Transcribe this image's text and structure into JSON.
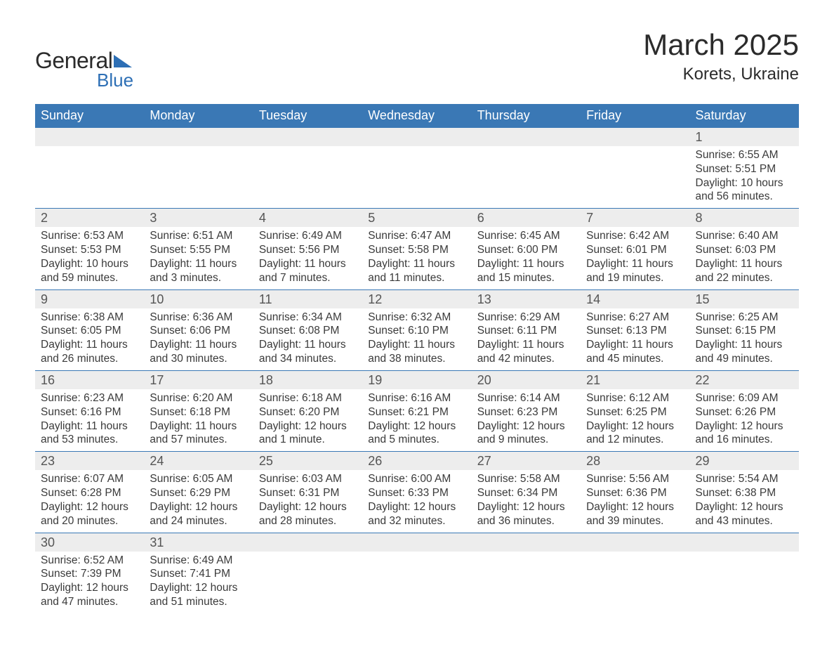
{
  "logo": {
    "text1": "General",
    "text2": "Blue"
  },
  "title": "March 2025",
  "location": "Korets, Ukraine",
  "colors": {
    "header_bg": "#3a78b5",
    "header_text": "#ffffff",
    "daynum_bg": "#ededed",
    "rule": "#3a78b5",
    "body_text": "#3a3a3a",
    "logo_accent": "#2d6fb5"
  },
  "day_headers": [
    "Sunday",
    "Monday",
    "Tuesday",
    "Wednesday",
    "Thursday",
    "Friday",
    "Saturday"
  ],
  "first_weekday_index": 6,
  "days": [
    {
      "n": 1,
      "sunrise": "6:55 AM",
      "sunset": "5:51 PM",
      "daylight": "10 hours and 56 minutes."
    },
    {
      "n": 2,
      "sunrise": "6:53 AM",
      "sunset": "5:53 PM",
      "daylight": "10 hours and 59 minutes."
    },
    {
      "n": 3,
      "sunrise": "6:51 AM",
      "sunset": "5:55 PM",
      "daylight": "11 hours and 3 minutes."
    },
    {
      "n": 4,
      "sunrise": "6:49 AM",
      "sunset": "5:56 PM",
      "daylight": "11 hours and 7 minutes."
    },
    {
      "n": 5,
      "sunrise": "6:47 AM",
      "sunset": "5:58 PM",
      "daylight": "11 hours and 11 minutes."
    },
    {
      "n": 6,
      "sunrise": "6:45 AM",
      "sunset": "6:00 PM",
      "daylight": "11 hours and 15 minutes."
    },
    {
      "n": 7,
      "sunrise": "6:42 AM",
      "sunset": "6:01 PM",
      "daylight": "11 hours and 19 minutes."
    },
    {
      "n": 8,
      "sunrise": "6:40 AM",
      "sunset": "6:03 PM",
      "daylight": "11 hours and 22 minutes."
    },
    {
      "n": 9,
      "sunrise": "6:38 AM",
      "sunset": "6:05 PM",
      "daylight": "11 hours and 26 minutes."
    },
    {
      "n": 10,
      "sunrise": "6:36 AM",
      "sunset": "6:06 PM",
      "daylight": "11 hours and 30 minutes."
    },
    {
      "n": 11,
      "sunrise": "6:34 AM",
      "sunset": "6:08 PM",
      "daylight": "11 hours and 34 minutes."
    },
    {
      "n": 12,
      "sunrise": "6:32 AM",
      "sunset": "6:10 PM",
      "daylight": "11 hours and 38 minutes."
    },
    {
      "n": 13,
      "sunrise": "6:29 AM",
      "sunset": "6:11 PM",
      "daylight": "11 hours and 42 minutes."
    },
    {
      "n": 14,
      "sunrise": "6:27 AM",
      "sunset": "6:13 PM",
      "daylight": "11 hours and 45 minutes."
    },
    {
      "n": 15,
      "sunrise": "6:25 AM",
      "sunset": "6:15 PM",
      "daylight": "11 hours and 49 minutes."
    },
    {
      "n": 16,
      "sunrise": "6:23 AM",
      "sunset": "6:16 PM",
      "daylight": "11 hours and 53 minutes."
    },
    {
      "n": 17,
      "sunrise": "6:20 AM",
      "sunset": "6:18 PM",
      "daylight": "11 hours and 57 minutes."
    },
    {
      "n": 18,
      "sunrise": "6:18 AM",
      "sunset": "6:20 PM",
      "daylight": "12 hours and 1 minute."
    },
    {
      "n": 19,
      "sunrise": "6:16 AM",
      "sunset": "6:21 PM",
      "daylight": "12 hours and 5 minutes."
    },
    {
      "n": 20,
      "sunrise": "6:14 AM",
      "sunset": "6:23 PM",
      "daylight": "12 hours and 9 minutes."
    },
    {
      "n": 21,
      "sunrise": "6:12 AM",
      "sunset": "6:25 PM",
      "daylight": "12 hours and 12 minutes."
    },
    {
      "n": 22,
      "sunrise": "6:09 AM",
      "sunset": "6:26 PM",
      "daylight": "12 hours and 16 minutes."
    },
    {
      "n": 23,
      "sunrise": "6:07 AM",
      "sunset": "6:28 PM",
      "daylight": "12 hours and 20 minutes."
    },
    {
      "n": 24,
      "sunrise": "6:05 AM",
      "sunset": "6:29 PM",
      "daylight": "12 hours and 24 minutes."
    },
    {
      "n": 25,
      "sunrise": "6:03 AM",
      "sunset": "6:31 PM",
      "daylight": "12 hours and 28 minutes."
    },
    {
      "n": 26,
      "sunrise": "6:00 AM",
      "sunset": "6:33 PM",
      "daylight": "12 hours and 32 minutes."
    },
    {
      "n": 27,
      "sunrise": "5:58 AM",
      "sunset": "6:34 PM",
      "daylight": "12 hours and 36 minutes."
    },
    {
      "n": 28,
      "sunrise": "5:56 AM",
      "sunset": "6:36 PM",
      "daylight": "12 hours and 39 minutes."
    },
    {
      "n": 29,
      "sunrise": "5:54 AM",
      "sunset": "6:38 PM",
      "daylight": "12 hours and 43 minutes."
    },
    {
      "n": 30,
      "sunrise": "6:52 AM",
      "sunset": "7:39 PM",
      "daylight": "12 hours and 47 minutes."
    },
    {
      "n": 31,
      "sunrise": "6:49 AM",
      "sunset": "7:41 PM",
      "daylight": "12 hours and 51 minutes."
    }
  ],
  "labels": {
    "sunrise_prefix": "Sunrise: ",
    "sunset_prefix": "Sunset: ",
    "daylight_prefix": "Daylight: "
  }
}
